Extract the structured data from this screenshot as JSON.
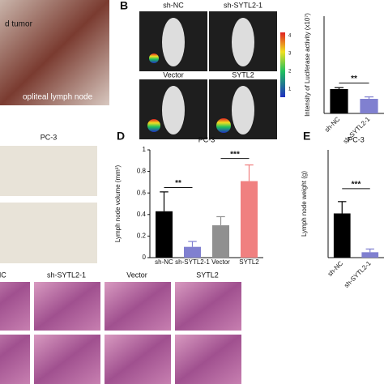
{
  "figure": {
    "photo_labels": [
      "d tumor",
      "opliteal lymph node"
    ],
    "panel_b": {
      "letter": "B",
      "image_labels": [
        "sh-NC",
        "sh-SYTL2-1",
        "Vector",
        "SYTL2"
      ],
      "colorbar_ticks": [
        4,
        3,
        2,
        1
      ]
    },
    "panel_c": {
      "title": "PC-3"
    },
    "histology": {
      "labels": [
        "sh-NC",
        "sh-SYTL2-1",
        "Vector",
        "SYTL2"
      ]
    }
  },
  "chart_data": [
    {
      "type": "bar",
      "ylabel": "Intensity of Luciferase activity (x10⁷)",
      "categories": [
        "sh-NC",
        "sh-SYTL2-1"
      ],
      "values": [
        10,
        6
      ],
      "errors": [
        0.6,
        0.8
      ],
      "colors": [
        "#000000",
        "#8080d0"
      ],
      "ylim": [
        0,
        40
      ],
      "annotations": [
        {
          "text": "**",
          "from": 0,
          "to": 1,
          "y": 12.5
        }
      ]
    },
    {
      "type": "bar",
      "letter": "D",
      "title": "PC-3",
      "ylabel": "Lymph node volume (mm³)",
      "categories": [
        "sh-NC",
        "sh-SYTL2-1",
        "Vector",
        "SYTL2"
      ],
      "values": [
        0.43,
        0.1,
        0.3,
        0.71
      ],
      "errors": [
        0.18,
        0.05,
        0.08,
        0.15
      ],
      "colors": [
        "#000000",
        "#8080d0",
        "#909090",
        "#f08080"
      ],
      "ylim": [
        0,
        1
      ],
      "yticks": [
        0,
        0.2,
        0.4,
        0.6,
        0.8,
        1
      ],
      "annotations": [
        {
          "text": "**",
          "from": 0,
          "to": 1,
          "y": 0.65
        },
        {
          "text": "***",
          "from": 2,
          "to": 3,
          "y": 0.92
        }
      ]
    },
    {
      "type": "bar",
      "letter": "E",
      "title": "PC-3",
      "ylabel": "Lymph node weight (g)",
      "categories": [
        "sh-NC",
        "sh-SYTL2-1"
      ],
      "values": [
        0.41,
        0.05
      ],
      "errors": [
        0.11,
        0.03
      ],
      "colors": [
        "#000000",
        "#8080d0"
      ],
      "ylim": [
        0,
        1
      ],
      "annotations": [
        {
          "text": "***",
          "from": 0,
          "to": 1,
          "y": 0.64
        }
      ]
    }
  ]
}
